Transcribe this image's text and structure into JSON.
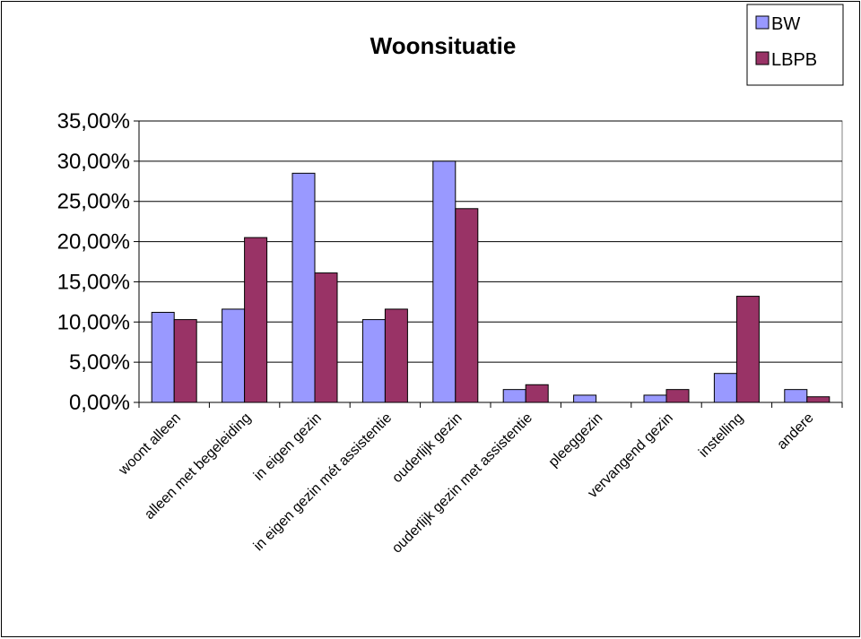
{
  "chart_data": {
    "type": "bar",
    "title": "Woonsituatie",
    "categories": [
      "woont alleen",
      "alleen met begeleiding",
      "in eigen gezin",
      "in eigen gezin mét assistentie",
      "ouderlijk gezin",
      "ouderlijk gezin met assistentie",
      "pleeggezin",
      "vervangend gezin",
      "instelling",
      "andere"
    ],
    "series": [
      {
        "name": "BW",
        "color": "#9999ff",
        "values": [
          11.2,
          11.6,
          28.5,
          10.3,
          30.0,
          1.6,
          0.9,
          0.9,
          3.6,
          1.6
        ]
      },
      {
        "name": "LBPB",
        "color": "#993366",
        "values": [
          10.3,
          20.5,
          16.1,
          11.6,
          24.1,
          2.2,
          0.0,
          1.6,
          13.2,
          0.7
        ]
      }
    ],
    "ylim": [
      0,
      35
    ],
    "yticks": [
      0,
      5,
      10,
      15,
      20,
      25,
      30,
      35
    ],
    "ytick_labels": [
      "0,00%",
      "5,00%",
      "10,00%",
      "15,00%",
      "20,00%",
      "25,00%",
      "30,00%",
      "35,00%"
    ],
    "grid": true,
    "legend_position": "top-right"
  }
}
